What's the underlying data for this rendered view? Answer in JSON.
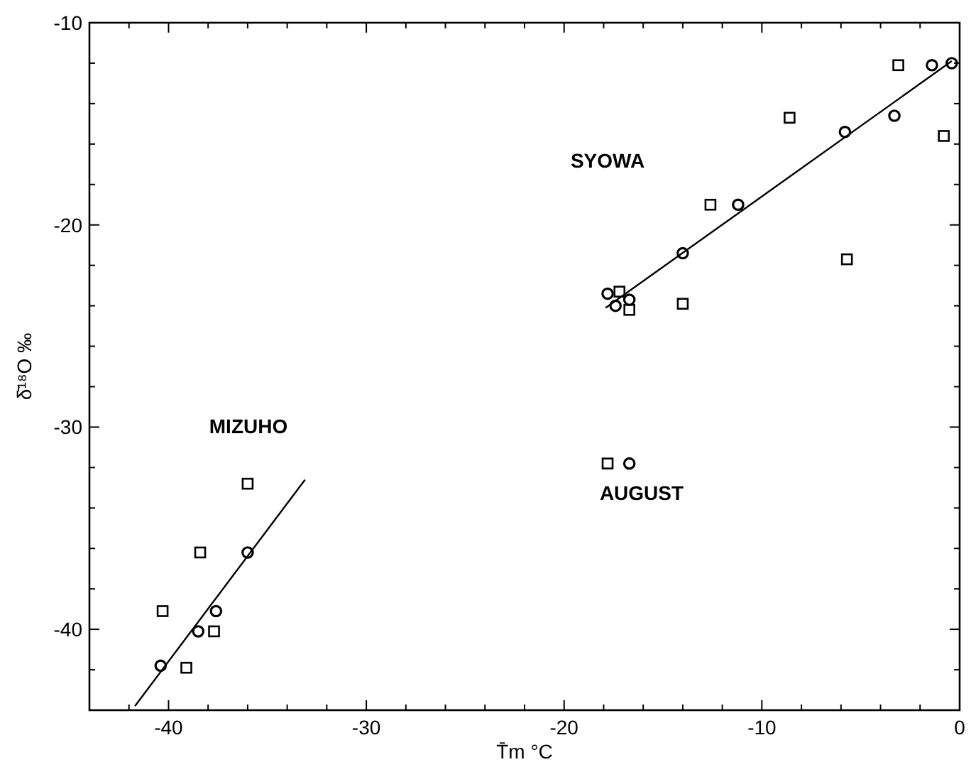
{
  "chart_data": {
    "type": "scatter",
    "xlabel": "T̄m °C",
    "ylabel": "δ̄¹⁸O ‰",
    "xlim": [
      -44,
      0
    ],
    "ylim": [
      -44,
      -10
    ],
    "xticks": [
      {
        "value": -42,
        "label": null
      },
      -40,
      {
        "value": -38,
        "label": null
      },
      {
        "value": -36,
        "label": null
      },
      {
        "value": -34,
        "label": null
      },
      {
        "value": -32,
        "label": null
      },
      -30,
      {
        "value": -28,
        "label": null
      },
      {
        "value": -26,
        "label": null
      },
      {
        "value": -24,
        "label": null
      },
      {
        "value": -22,
        "label": null
      },
      -20,
      {
        "value": -18,
        "label": null
      },
      {
        "value": -16,
        "label": null
      },
      {
        "value": -14,
        "label": null
      },
      {
        "value": -12,
        "label": null
      },
      -10,
      {
        "value": -8,
        "label": null
      },
      {
        "value": -6,
        "label": null
      },
      {
        "value": -4,
        "label": null
      },
      {
        "value": -2,
        "label": null
      },
      0
    ],
    "yticks": [
      {
        "value": -42,
        "label": null
      },
      -40,
      {
        "value": -38,
        "label": null
      },
      {
        "value": -36,
        "label": null
      },
      {
        "value": -34,
        "label": null
      },
      {
        "value": -32,
        "label": null
      },
      -30,
      {
        "value": -28,
        "label": null
      },
      {
        "value": -26,
        "label": null
      },
      {
        "value": -24,
        "label": null
      },
      {
        "value": -22,
        "label": null
      },
      -20,
      {
        "value": -18,
        "label": null
      },
      {
        "value": -16,
        "label": null
      },
      {
        "value": -14,
        "label": null
      },
      {
        "value": -12,
        "label": null
      },
      -10
    ],
    "grid": false,
    "series": [
      {
        "marker": "square",
        "color": "#000000",
        "x": [
          -3.1,
          -0.8,
          -8.6,
          -12.6,
          -5.7,
          -14.0,
          -17.2,
          -16.7,
          -17.8,
          -36.0,
          -38.4,
          -40.3,
          -37.7,
          -39.1
        ],
        "values": [
          -12.1,
          -15.6,
          -14.7,
          -19.0,
          -21.7,
          -23.9,
          -23.3,
          -24.2,
          -31.8,
          -32.8,
          -36.2,
          -39.1,
          -40.1,
          -41.9
        ]
      },
      {
        "marker": "circle",
        "color": "#000000",
        "x": [
          -1.4,
          -0.4,
          -3.3,
          -5.8,
          -11.2,
          -14.0,
          -17.8,
          -17.4,
          -16.7,
          -16.7,
          -36.0,
          -37.6,
          -38.5,
          -40.4
        ],
        "values": [
          -12.1,
          -12.0,
          -14.6,
          -15.4,
          -19.0,
          -21.4,
          -23.4,
          -24.0,
          -23.7,
          -31.8,
          -36.2,
          -39.1,
          -40.1,
          -41.8
        ]
      },
      {
        "type": "line",
        "marker": "none",
        "color": "#000000",
        "x": [
          -17.9,
          -0.4
        ],
        "values": [
          -24.1,
          -11.9
        ]
      },
      {
        "type": "line",
        "marker": "none",
        "color": "#000000",
        "x": [
          -41.7,
          -33.1
        ],
        "values": [
          -43.8,
          -32.6
        ]
      }
    ],
    "annotations": [
      "SYOWA",
      "MIZUHO",
      "AUGUST"
    ]
  }
}
